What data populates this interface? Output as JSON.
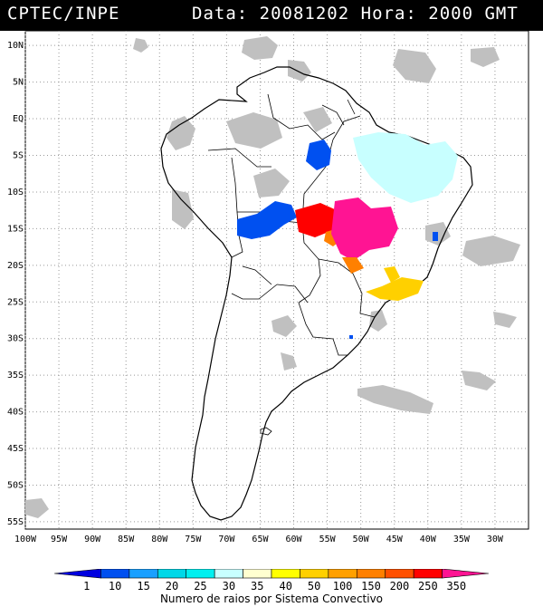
{
  "header": {
    "source": "CPTEC/INPE",
    "date_label": "Data:",
    "date_value": "20081202",
    "time_label": "Hora:",
    "time_value": "2000 GMT"
  },
  "map": {
    "lon_range": [
      -100,
      -25
    ],
    "lat_range": [
      -56,
      12
    ],
    "lat_ticks": [
      "10N",
      "5N",
      "EQ",
      "5S",
      "10S",
      "15S",
      "20S",
      "25S",
      "30S",
      "35S",
      "40S",
      "45S",
      "50S",
      "55S"
    ],
    "lat_values": [
      10,
      5,
      0,
      -5,
      -10,
      -15,
      -20,
      -25,
      -30,
      -35,
      -40,
      -45,
      -50,
      -55
    ],
    "lon_ticks": [
      "100W",
      "95W",
      "90W",
      "85W",
      "80W",
      "75W",
      "70W",
      "65W",
      "60W",
      "55W",
      "50W",
      "45W",
      "40W",
      "35W",
      "30W"
    ],
    "lon_values": [
      -100,
      -95,
      -90,
      -85,
      -80,
      -75,
      -70,
      -65,
      -60,
      -55,
      -50,
      -45,
      -40,
      -35,
      -30
    ],
    "grid": true
  },
  "legend": {
    "labels": [
      "1",
      "10",
      "15",
      "20",
      "25",
      "30",
      "35",
      "40",
      "50",
      "100",
      "150",
      "200",
      "250",
      "350"
    ],
    "colors": [
      "#0000e0",
      "#0050f0",
      "#1aa0ff",
      "#00d8e8",
      "#00f0f0",
      "#c8ffff",
      "#ffffd0",
      "#ffff00",
      "#ffd000",
      "#ffa000",
      "#ff8000",
      "#ff5000",
      "#ff0000",
      "#ff1493"
    ],
    "caption": "Numero de raios por Sistema Convectivo"
  }
}
